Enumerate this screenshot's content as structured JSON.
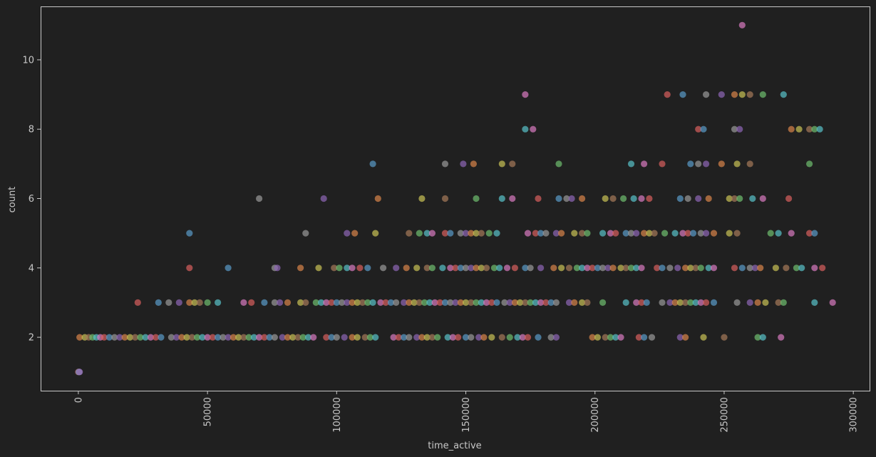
{
  "chart_data": {
    "type": "scatter",
    "xlabel": "time_active",
    "ylabel": "count",
    "xlim": [
      -14600,
      306300
    ],
    "ylim": [
      0.46,
      11.54
    ],
    "xticks": [
      0,
      50000,
      100000,
      150000,
      200000,
      250000,
      300000
    ],
    "xtick_labels": [
      "0",
      "50000",
      "100000",
      "150000",
      "200000",
      "250000",
      "300000"
    ],
    "xtick_rotation": 90,
    "yticks": [
      2,
      4,
      6,
      8,
      10
    ],
    "ytick_labels": [
      "2",
      "4",
      "6",
      "8",
      "10"
    ],
    "grid": false,
    "legend": "none",
    "colors": {
      "background": "#202020",
      "axes_edge": "#c8c8c8",
      "text": "#c8c8c8",
      "point_palette": [
        "#5a9bc9",
        "#d8844a",
        "#6fbf6f",
        "#d9605e",
        "#8e66b7",
        "#a77a5a",
        "#d87ac0",
        "#9a9a9a",
        "#c9c255",
        "#59c2c9"
      ]
    },
    "point_alpha": 0.7,
    "points": [
      [
        0,
        1
      ],
      [
        200,
        1
      ],
      [
        400,
        1
      ],
      [
        500,
        1
      ],
      [
        500,
        2
      ],
      [
        2500,
        2
      ],
      [
        4000,
        2
      ],
      [
        5500,
        2
      ],
      [
        7000,
        2
      ],
      [
        8500,
        2
      ],
      [
        10000,
        2
      ],
      [
        12000,
        2
      ],
      [
        14000,
        2
      ],
      [
        16000,
        2
      ],
      [
        18000,
        2
      ],
      [
        20000,
        2
      ],
      [
        22000,
        2
      ],
      [
        24000,
        2
      ],
      [
        26000,
        2
      ],
      [
        28000,
        2
      ],
      [
        30000,
        2
      ],
      [
        32000,
        2
      ],
      [
        36000,
        2
      ],
      [
        38000,
        2
      ],
      [
        40000,
        2
      ],
      [
        42000,
        2
      ],
      [
        44000,
        2
      ],
      [
        46000,
        2
      ],
      [
        48000,
        2
      ],
      [
        50000,
        2
      ],
      [
        52000,
        2
      ],
      [
        54000,
        2
      ],
      [
        56000,
        2
      ],
      [
        58000,
        2
      ],
      [
        60000,
        2
      ],
      [
        62000,
        2
      ],
      [
        64000,
        2
      ],
      [
        66000,
        2
      ],
      [
        68000,
        2
      ],
      [
        70000,
        2
      ],
      [
        72000,
        2
      ],
      [
        74000,
        2
      ],
      [
        76000,
        2
      ],
      [
        79000,
        2
      ],
      [
        81000,
        2
      ],
      [
        83000,
        2
      ],
      [
        85000,
        2
      ],
      [
        87000,
        2
      ],
      [
        89000,
        2
      ],
      [
        91000,
        2
      ],
      [
        96000,
        2
      ],
      [
        98000,
        2
      ],
      [
        100000,
        2
      ],
      [
        103000,
        2
      ],
      [
        106000,
        2
      ],
      [
        108000,
        2
      ],
      [
        111000,
        2
      ],
      [
        113000,
        2
      ],
      [
        115000,
        2
      ],
      [
        122000,
        2
      ],
      [
        124000,
        2
      ],
      [
        126000,
        2
      ],
      [
        128000,
        2
      ],
      [
        131000,
        2
      ],
      [
        133000,
        2
      ],
      [
        135000,
        2
      ],
      [
        137000,
        2
      ],
      [
        139000,
        2
      ],
      [
        143000,
        2
      ],
      [
        145000,
        2
      ],
      [
        147000,
        2
      ],
      [
        150000,
        2
      ],
      [
        152000,
        2
      ],
      [
        155000,
        2
      ],
      [
        157000,
        2
      ],
      [
        160000,
        2
      ],
      [
        164000,
        2
      ],
      [
        167000,
        2
      ],
      [
        170000,
        2
      ],
      [
        172000,
        2
      ],
      [
        174000,
        2
      ],
      [
        178000,
        2
      ],
      [
        183000,
        2
      ],
      [
        185000,
        2
      ],
      [
        199000,
        2
      ],
      [
        201000,
        2
      ],
      [
        204000,
        2
      ],
      [
        206000,
        2
      ],
      [
        208000,
        2
      ],
      [
        210000,
        2
      ],
      [
        217000,
        2
      ],
      [
        219000,
        2
      ],
      [
        222000,
        2
      ],
      [
        233000,
        2
      ],
      [
        235000,
        2
      ],
      [
        242000,
        2
      ],
      [
        250000,
        2
      ],
      [
        263000,
        2
      ],
      [
        265000,
        2
      ],
      [
        272000,
        2
      ],
      [
        23000,
        3
      ],
      [
        31000,
        3
      ],
      [
        35000,
        3
      ],
      [
        39000,
        3
      ],
      [
        43000,
        3
      ],
      [
        45000,
        3
      ],
      [
        47000,
        3
      ],
      [
        50000,
        3
      ],
      [
        54000,
        3
      ],
      [
        64000,
        3
      ],
      [
        67000,
        3
      ],
      [
        72000,
        3
      ],
      [
        76000,
        3
      ],
      [
        78000,
        3
      ],
      [
        81000,
        3
      ],
      [
        86000,
        3
      ],
      [
        88000,
        3
      ],
      [
        92000,
        3
      ],
      [
        94000,
        3
      ],
      [
        96000,
        3
      ],
      [
        98000,
        3
      ],
      [
        100000,
        3
      ],
      [
        102000,
        3
      ],
      [
        104000,
        3
      ],
      [
        106000,
        3
      ],
      [
        108000,
        3
      ],
      [
        110000,
        3
      ],
      [
        112000,
        3
      ],
      [
        114000,
        3
      ],
      [
        117000,
        3
      ],
      [
        119000,
        3
      ],
      [
        121000,
        3
      ],
      [
        123000,
        3
      ],
      [
        126000,
        3
      ],
      [
        128000,
        3
      ],
      [
        130000,
        3
      ],
      [
        132000,
        3
      ],
      [
        134000,
        3
      ],
      [
        136000,
        3
      ],
      [
        138000,
        3
      ],
      [
        140000,
        3
      ],
      [
        142000,
        3
      ],
      [
        144000,
        3
      ],
      [
        146000,
        3
      ],
      [
        148000,
        3
      ],
      [
        150000,
        3
      ],
      [
        152000,
        3
      ],
      [
        154000,
        3
      ],
      [
        156000,
        3
      ],
      [
        158000,
        3
      ],
      [
        160000,
        3
      ],
      [
        162000,
        3
      ],
      [
        165000,
        3
      ],
      [
        167000,
        3
      ],
      [
        169000,
        3
      ],
      [
        171000,
        3
      ],
      [
        173000,
        3
      ],
      [
        175000,
        3
      ],
      [
        177000,
        3
      ],
      [
        179000,
        3
      ],
      [
        181000,
        3
      ],
      [
        183000,
        3
      ],
      [
        185000,
        3
      ],
      [
        190000,
        3
      ],
      [
        192000,
        3
      ],
      [
        195000,
        3
      ],
      [
        197000,
        3
      ],
      [
        203000,
        3
      ],
      [
        212000,
        3
      ],
      [
        216000,
        3
      ],
      [
        218000,
        3
      ],
      [
        220000,
        3
      ],
      [
        226000,
        3
      ],
      [
        229000,
        3
      ],
      [
        231000,
        3
      ],
      [
        233000,
        3
      ],
      [
        235000,
        3
      ],
      [
        237000,
        3
      ],
      [
        239000,
        3
      ],
      [
        241000,
        3
      ],
      [
        243000,
        3
      ],
      [
        246000,
        3
      ],
      [
        255000,
        3
      ],
      [
        260000,
        3
      ],
      [
        263000,
        3
      ],
      [
        266000,
        3
      ],
      [
        271000,
        3
      ],
      [
        273000,
        3
      ],
      [
        285000,
        3
      ],
      [
        292000,
        3
      ],
      [
        43000,
        4
      ],
      [
        58000,
        4
      ],
      [
        76000,
        4
      ],
      [
        77000,
        4
      ],
      [
        86000,
        4
      ],
      [
        93000,
        4
      ],
      [
        99000,
        4
      ],
      [
        101000,
        4
      ],
      [
        104000,
        4
      ],
      [
        106000,
        4
      ],
      [
        109000,
        4
      ],
      [
        112000,
        4
      ],
      [
        118000,
        4
      ],
      [
        123000,
        4
      ],
      [
        127000,
        4
      ],
      [
        131000,
        4
      ],
      [
        135000,
        4
      ],
      [
        137000,
        4
      ],
      [
        141000,
        4
      ],
      [
        144000,
        4
      ],
      [
        146000,
        4
      ],
      [
        148000,
        4
      ],
      [
        150000,
        4
      ],
      [
        152000,
        4
      ],
      [
        154000,
        4
      ],
      [
        156000,
        4
      ],
      [
        158000,
        4
      ],
      [
        161000,
        4
      ],
      [
        163000,
        4
      ],
      [
        166000,
        4
      ],
      [
        169000,
        4
      ],
      [
        173000,
        4
      ],
      [
        175000,
        4
      ],
      [
        179000,
        4
      ],
      [
        184000,
        4
      ],
      [
        187000,
        4
      ],
      [
        190000,
        4
      ],
      [
        193000,
        4
      ],
      [
        195000,
        4
      ],
      [
        197000,
        4
      ],
      [
        199000,
        4
      ],
      [
        201000,
        4
      ],
      [
        203000,
        4
      ],
      [
        205000,
        4
      ],
      [
        207000,
        4
      ],
      [
        210000,
        4
      ],
      [
        212000,
        4
      ],
      [
        214000,
        4
      ],
      [
        216000,
        4
      ],
      [
        218000,
        4
      ],
      [
        224000,
        4
      ],
      [
        226000,
        4
      ],
      [
        229000,
        4
      ],
      [
        232000,
        4
      ],
      [
        235000,
        4
      ],
      [
        237000,
        4
      ],
      [
        239000,
        4
      ],
      [
        241000,
        4
      ],
      [
        244000,
        4
      ],
      [
        246000,
        4
      ],
      [
        254000,
        4
      ],
      [
        257000,
        4
      ],
      [
        260000,
        4
      ],
      [
        262000,
        4
      ],
      [
        264000,
        4
      ],
      [
        270000,
        4
      ],
      [
        274000,
        4
      ],
      [
        278000,
        4
      ],
      [
        280000,
        4
      ],
      [
        285000,
        4
      ],
      [
        288000,
        4
      ],
      [
        43000,
        5
      ],
      [
        88000,
        5
      ],
      [
        104000,
        5
      ],
      [
        107000,
        5
      ],
      [
        115000,
        5
      ],
      [
        128000,
        5
      ],
      [
        132000,
        5
      ],
      [
        135000,
        5
      ],
      [
        137000,
        5
      ],
      [
        142000,
        5
      ],
      [
        144000,
        5
      ],
      [
        148000,
        5
      ],
      [
        150000,
        5
      ],
      [
        152000,
        5
      ],
      [
        154000,
        5
      ],
      [
        156000,
        5
      ],
      [
        159000,
        5
      ],
      [
        162000,
        5
      ],
      [
        174000,
        5
      ],
      [
        177000,
        5
      ],
      [
        179000,
        5
      ],
      [
        181000,
        5
      ],
      [
        185000,
        5
      ],
      [
        187000,
        5
      ],
      [
        192000,
        5
      ],
      [
        195000,
        5
      ],
      [
        197000,
        5
      ],
      [
        203000,
        5
      ],
      [
        206000,
        5
      ],
      [
        208000,
        5
      ],
      [
        212000,
        5
      ],
      [
        214000,
        5
      ],
      [
        216000,
        5
      ],
      [
        219000,
        5
      ],
      [
        221000,
        5
      ],
      [
        223000,
        5
      ],
      [
        227000,
        5
      ],
      [
        231000,
        5
      ],
      [
        234000,
        5
      ],
      [
        236000,
        5
      ],
      [
        238000,
        5
      ],
      [
        241000,
        5
      ],
      [
        243000,
        5
      ],
      [
        246000,
        5
      ],
      [
        252000,
        5
      ],
      [
        255000,
        5
      ],
      [
        268000,
        5
      ],
      [
        271000,
        5
      ],
      [
        276000,
        5
      ],
      [
        283000,
        5
      ],
      [
        285000,
        5
      ],
      [
        70000,
        6
      ],
      [
        95000,
        6
      ],
      [
        116000,
        6
      ],
      [
        133000,
        6
      ],
      [
        142000,
        6
      ],
      [
        154000,
        6
      ],
      [
        164000,
        6
      ],
      [
        168000,
        6
      ],
      [
        178000,
        6
      ],
      [
        186000,
        6
      ],
      [
        189000,
        6
      ],
      [
        191000,
        6
      ],
      [
        195000,
        6
      ],
      [
        204000,
        6
      ],
      [
        207000,
        6
      ],
      [
        211000,
        6
      ],
      [
        215000,
        6
      ],
      [
        218000,
        6
      ],
      [
        221000,
        6
      ],
      [
        233000,
        6
      ],
      [
        236000,
        6
      ],
      [
        240000,
        6
      ],
      [
        244000,
        6
      ],
      [
        252000,
        6
      ],
      [
        254000,
        6
      ],
      [
        256000,
        6
      ],
      [
        261000,
        6
      ],
      [
        265000,
        6
      ],
      [
        275000,
        6
      ],
      [
        114000,
        7
      ],
      [
        142000,
        7
      ],
      [
        149000,
        7
      ],
      [
        153000,
        7
      ],
      [
        164000,
        7
      ],
      [
        168000,
        7
      ],
      [
        186000,
        7
      ],
      [
        214000,
        7
      ],
      [
        219000,
        7
      ],
      [
        226000,
        7
      ],
      [
        237000,
        7
      ],
      [
        240000,
        7
      ],
      [
        243000,
        7
      ],
      [
        249000,
        7
      ],
      [
        255000,
        7
      ],
      [
        260000,
        7
      ],
      [
        283000,
        7
      ],
      [
        173000,
        8
      ],
      [
        176000,
        8
      ],
      [
        240000,
        8
      ],
      [
        242000,
        8
      ],
      [
        254000,
        8
      ],
      [
        256000,
        8
      ],
      [
        276000,
        8
      ],
      [
        279000,
        8
      ],
      [
        283000,
        8
      ],
      [
        285000,
        8
      ],
      [
        287000,
        8
      ],
      [
        173000,
        9
      ],
      [
        228000,
        9
      ],
      [
        234000,
        9
      ],
      [
        243000,
        9
      ],
      [
        249000,
        9
      ],
      [
        254000,
        9
      ],
      [
        257000,
        9
      ],
      [
        260000,
        9
      ],
      [
        265000,
        9
      ],
      [
        273000,
        9
      ],
      [
        257000,
        11
      ]
    ]
  }
}
